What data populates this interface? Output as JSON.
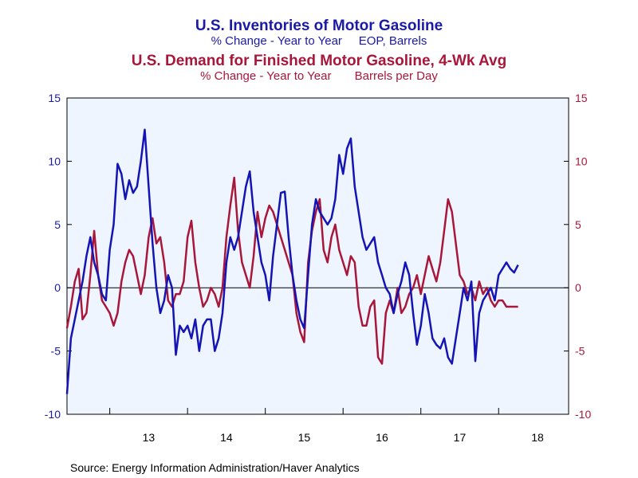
{
  "chart_data": {
    "type": "line",
    "titles": {
      "blue_title": "U.S. Inventories of Motor Gasoline",
      "blue_subtitle": "% Change - Year to Year     EOP, Barrels",
      "red_title": "U.S. Demand for Finished Motor Gasoline, 4-Wk Avg",
      "red_subtitle": "% Change - Year to Year       Barrels per Day"
    },
    "source": "Source:  Energy Information Administration/Haver Analytics",
    "colors": {
      "blue": "#1414b4",
      "red": "#a8173a",
      "plot_bg": "#eef5ff"
    },
    "ylim": [
      -10,
      15
    ],
    "y_ticks": [
      "15",
      "10",
      "5",
      "0",
      "-5",
      "-10"
    ],
    "x_tick_labels": [
      "13",
      "14",
      "15",
      "16",
      "17",
      "18"
    ],
    "xlim": [
      2012.45,
      2018.9
    ],
    "series": [
      {
        "color": "#1414b4",
        "axis": "left",
        "x": [
          2012.45,
          2012.5,
          2012.55,
          2012.6,
          2012.65,
          2012.7,
          2012.75,
          2012.8,
          2012.85,
          2012.9,
          2012.95,
          2013.0,
          2013.05,
          2013.1,
          2013.15,
          2013.2,
          2013.25,
          2013.3,
          2013.35,
          2013.4,
          2013.45,
          2013.5,
          2013.55,
          2013.6,
          2013.65,
          2013.7,
          2013.75,
          2013.8,
          2013.85,
          2013.9,
          2013.95,
          2014.0,
          2014.05,
          2014.1,
          2014.15,
          2014.2,
          2014.25,
          2014.3,
          2014.35,
          2014.4,
          2014.45,
          2014.5,
          2014.55,
          2014.6,
          2014.65,
          2014.7,
          2014.75,
          2014.8,
          2014.85,
          2014.9,
          2014.95,
          2015.0,
          2015.05,
          2015.1,
          2015.15,
          2015.2,
          2015.25,
          2015.3,
          2015.35,
          2015.4,
          2015.45,
          2015.5,
          2015.55,
          2015.6,
          2015.65,
          2015.7,
          2015.75,
          2015.8,
          2015.85,
          2015.9,
          2015.95,
          2016.0,
          2016.05,
          2016.1,
          2016.15,
          2016.2,
          2016.25,
          2016.3,
          2016.35,
          2016.4,
          2016.45,
          2016.5,
          2016.55,
          2016.6,
          2016.65,
          2016.7,
          2016.75,
          2016.8,
          2016.85,
          2016.9,
          2016.95,
          2017.0,
          2017.05,
          2017.1,
          2017.15,
          2017.2,
          2017.25,
          2017.3,
          2017.35,
          2017.4,
          2017.45,
          2017.5,
          2017.55,
          2017.6,
          2017.65,
          2017.7,
          2017.75,
          2017.8,
          2017.85,
          2017.9,
          2017.95,
          2018.0,
          2018.05,
          2018.1,
          2018.15,
          2018.2,
          2018.25
        ],
        "values": [
          -8.4,
          -4.0,
          -2.5,
          -1.0,
          0.5,
          2.5,
          4.0,
          2.0,
          1.0,
          -0.5,
          -1.0,
          3.0,
          5.0,
          9.8,
          9.0,
          7.0,
          8.5,
          7.5,
          8.0,
          10.0,
          12.5,
          8.0,
          3.5,
          0.0,
          -2.0,
          -1.0,
          1.0,
          0.0,
          -5.3,
          -3.0,
          -3.5,
          -3.0,
          -4.0,
          -2.5,
          -5.0,
          -3.0,
          -2.5,
          -2.5,
          -5.0,
          -4.0,
          -2.0,
          2.0,
          4.0,
          3.0,
          4.0,
          6.0,
          8.0,
          9.2,
          6.0,
          4.0,
          2.0,
          1.0,
          -1.0,
          2.5,
          5.0,
          7.5,
          7.6,
          4.0,
          1.0,
          -1.0,
          -2.5,
          -3.2,
          1.0,
          5.0,
          7.0,
          6.0,
          5.5,
          5.0,
          5.5,
          7.0,
          10.5,
          9.0,
          11.0,
          11.8,
          8.0,
          6.0,
          4.0,
          3.0,
          3.5,
          4.0,
          2.0,
          1.0,
          0.0,
          -0.5,
          -2.0,
          -0.5,
          0.5,
          2.0,
          1.0,
          -2.0,
          -4.5,
          -3.0,
          -0.5,
          -2.0,
          -4.0,
          -4.5,
          -4.8,
          -4.0,
          -5.5,
          -6.0,
          -4.0,
          -2.0,
          0.0,
          -1.0,
          0.5,
          -5.8,
          -2.0,
          -1.0,
          -0.5,
          0.0,
          -1.0,
          1.0,
          1.5,
          2.0,
          1.5,
          1.2,
          1.8
        ]
      },
      {
        "color": "#a8173a",
        "axis": "right",
        "x": [
          2012.45,
          2012.5,
          2012.55,
          2012.6,
          2012.65,
          2012.7,
          2012.75,
          2012.8,
          2012.85,
          2012.9,
          2012.95,
          2013.0,
          2013.05,
          2013.1,
          2013.15,
          2013.2,
          2013.25,
          2013.3,
          2013.35,
          2013.4,
          2013.45,
          2013.5,
          2013.55,
          2013.6,
          2013.65,
          2013.7,
          2013.75,
          2013.8,
          2013.85,
          2013.9,
          2013.95,
          2014.0,
          2014.05,
          2014.1,
          2014.15,
          2014.2,
          2014.25,
          2014.3,
          2014.35,
          2014.4,
          2014.45,
          2014.5,
          2014.55,
          2014.6,
          2014.65,
          2014.7,
          2014.75,
          2014.8,
          2014.85,
          2014.9,
          2014.95,
          2015.0,
          2015.05,
          2015.1,
          2015.15,
          2015.2,
          2015.25,
          2015.3,
          2015.35,
          2015.4,
          2015.45,
          2015.5,
          2015.55,
          2015.6,
          2015.65,
          2015.7,
          2015.75,
          2015.8,
          2015.85,
          2015.9,
          2015.95,
          2016.0,
          2016.05,
          2016.1,
          2016.15,
          2016.2,
          2016.25,
          2016.3,
          2016.35,
          2016.4,
          2016.45,
          2016.5,
          2016.55,
          2016.6,
          2016.65,
          2016.7,
          2016.75,
          2016.8,
          2016.85,
          2016.9,
          2016.95,
          2017.0,
          2017.05,
          2017.1,
          2017.15,
          2017.2,
          2017.25,
          2017.3,
          2017.35,
          2017.4,
          2017.45,
          2017.5,
          2017.55,
          2017.6,
          2017.65,
          2017.7,
          2017.75,
          2017.8,
          2017.85,
          2017.9,
          2017.95,
          2018.0,
          2018.05,
          2018.1,
          2018.15,
          2018.2,
          2018.25
        ],
        "values": [
          -3.2,
          -1.5,
          0.5,
          1.5,
          -2.5,
          -2.0,
          1.0,
          4.5,
          1.0,
          -1.0,
          -1.5,
          -2.0,
          -3.0,
          -2.0,
          0.5,
          2.0,
          3.0,
          2.5,
          1.0,
          -0.5,
          1.0,
          4.0,
          5.5,
          3.5,
          4.0,
          2.0,
          -1.0,
          -1.5,
          -0.5,
          -0.5,
          0.5,
          4.0,
          5.3,
          2.0,
          0.0,
          -1.5,
          -1.0,
          0.0,
          -0.5,
          -1.5,
          0.0,
          4.0,
          6.5,
          8.7,
          4.5,
          2.0,
          1.0,
          0.0,
          2.5,
          6.0,
          4.0,
          5.5,
          6.5,
          6.0,
          5.0,
          4.0,
          3.0,
          2.0,
          1.0,
          -2.0,
          -3.5,
          -4.3,
          2.0,
          4.5,
          6.0,
          7.0,
          3.0,
          2.0,
          4.0,
          5.0,
          3.0,
          2.0,
          1.0,
          2.5,
          2.0,
          -1.5,
          -3.0,
          -3.0,
          -1.5,
          -1.0,
          -5.5,
          -6.0,
          -2.0,
          -1.0,
          -2.0,
          0.0,
          -2.0,
          -1.5,
          -0.5,
          0.0,
          1.0,
          -0.5,
          1.0,
          2.5,
          1.5,
          0.5,
          2.0,
          4.5,
          7.0,
          6.0,
          3.5,
          1.0,
          0.5,
          -0.5,
          0.0,
          -1.0,
          0.5,
          -0.5,
          0.0,
          -1.0,
          -1.5,
          -1.0,
          -1.0,
          -1.5,
          -1.5,
          -1.5,
          -1.5
        ]
      }
    ]
  }
}
